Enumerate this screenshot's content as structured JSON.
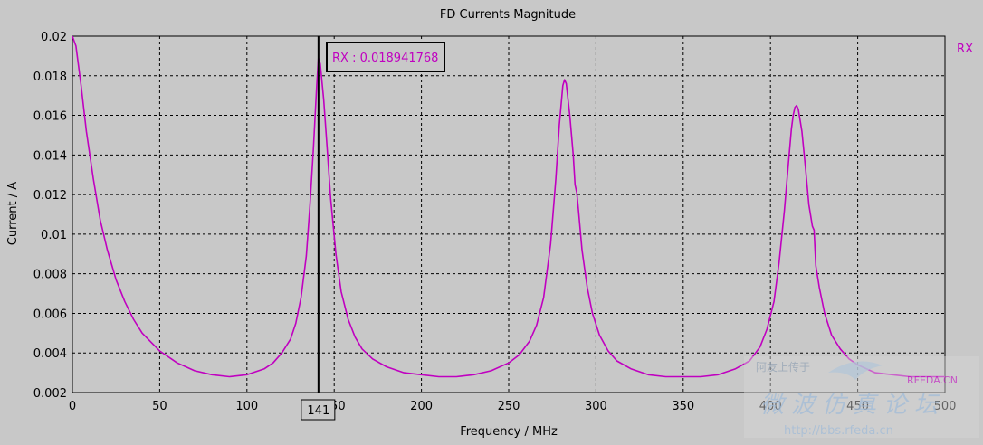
{
  "chart_data": {
    "type": "line",
    "title": "FD Currents Magnitude",
    "xlabel": "Frequency / MHz",
    "ylabel": "Current / A",
    "xlim": [
      0,
      500
    ],
    "ylim": [
      0.002,
      0.02
    ],
    "x_ticks": [
      "0",
      "50",
      "100",
      "150",
      "200",
      "250",
      "300",
      "350",
      "400",
      "450",
      "500"
    ],
    "x_tick_values": [
      0,
      50,
      100,
      150,
      200,
      250,
      300,
      350,
      400,
      450,
      500
    ],
    "y_ticks": [
      "0.002",
      "0.004",
      "0.006",
      "0.008",
      "0.01",
      "0.012",
      "0.014",
      "0.016",
      "0.018",
      "0.02"
    ],
    "y_tick_values": [
      0.002,
      0.004,
      0.006,
      0.008,
      0.01,
      0.012,
      0.014,
      0.016,
      0.018,
      0.02
    ],
    "grid": true,
    "legend_position": "top-right",
    "series": [
      {
        "name": "RX",
        "color": "#c000c0",
        "x": [
          0,
          2,
          5,
          8,
          12,
          16,
          20,
          25,
          30,
          35,
          40,
          50,
          60,
          70,
          80,
          90,
          100,
          110,
          115,
          120,
          125,
          128,
          131,
          134,
          136,
          138,
          140,
          141,
          142,
          144,
          146,
          148,
          151,
          154,
          158,
          162,
          166,
          172,
          180,
          190,
          200,
          210,
          220,
          230,
          240,
          250,
          256,
          262,
          266,
          270,
          274,
          277,
          279,
          281,
          282,
          283,
          285,
          287,
          288,
          289,
          290,
          292,
          295,
          298,
          302,
          307,
          312,
          320,
          330,
          340,
          350,
          360,
          370,
          380,
          388,
          394,
          398,
          402,
          405,
          408,
          410,
          412,
          413,
          414,
          415,
          416,
          418,
          420,
          422,
          424,
          425,
          426,
          428,
          431,
          435,
          440,
          445,
          450,
          460,
          470,
          480,
          490,
          500
        ],
        "y": [
          0.02,
          0.0195,
          0.0175,
          0.0152,
          0.0128,
          0.0107,
          0.0092,
          0.0077,
          0.0066,
          0.0057,
          0.005,
          0.0041,
          0.0035,
          0.0031,
          0.0029,
          0.0028,
          0.0029,
          0.0032,
          0.0035,
          0.004,
          0.0047,
          0.0055,
          0.0068,
          0.0089,
          0.0113,
          0.0142,
          0.0175,
          0.0189,
          0.0186,
          0.0168,
          0.0143,
          0.0118,
          0.009,
          0.0071,
          0.0057,
          0.0048,
          0.0042,
          0.0037,
          0.0033,
          0.003,
          0.0029,
          0.0028,
          0.0028,
          0.0029,
          0.0031,
          0.0035,
          0.0039,
          0.0046,
          0.0054,
          0.0068,
          0.0095,
          0.0128,
          0.0155,
          0.0175,
          0.0178,
          0.0176,
          0.016,
          0.014,
          0.0125,
          0.0121,
          0.0112,
          0.0092,
          0.0073,
          0.006,
          0.0049,
          0.0041,
          0.0036,
          0.0032,
          0.0029,
          0.0028,
          0.0028,
          0.0028,
          0.0029,
          0.0032,
          0.0036,
          0.0043,
          0.0052,
          0.0066,
          0.0086,
          0.0112,
          0.0133,
          0.0153,
          0.016,
          0.0164,
          0.0165,
          0.0163,
          0.0152,
          0.0134,
          0.0115,
          0.0104,
          0.0102,
          0.0084,
          0.0073,
          0.006,
          0.0049,
          0.0042,
          0.0037,
          0.0034,
          0.003,
          0.0029,
          0.0028,
          0.0028,
          0.0028
        ]
      }
    ],
    "cursor": {
      "x": 141,
      "x_label": "141",
      "readout": "RX : 0.018941768",
      "color": "#c000c0"
    }
  },
  "watermark": {
    "text_top": "阿友上传于",
    "brand": "RFEDA.CN",
    "text_cn": "微波仿真论坛",
    "url": "http://bbs.rfeda.cn"
  }
}
